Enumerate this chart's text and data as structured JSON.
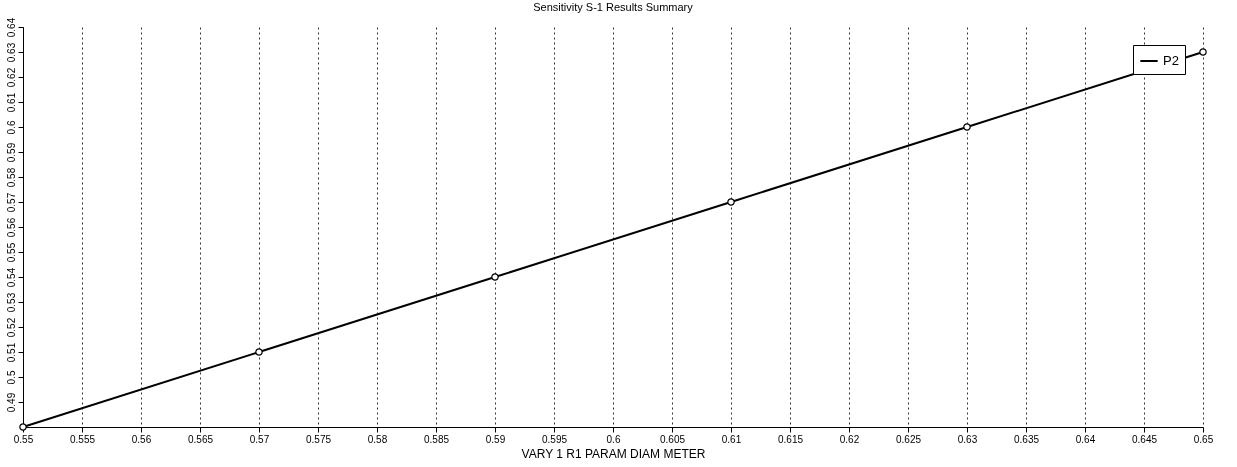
{
  "chart_data": {
    "type": "line",
    "title": "Sensitivity S-1 Results Summary",
    "xlabel": "VARY 1 R1 PARAM DIAM  METER",
    "x": [
      0.55,
      0.57,
      0.59,
      0.61,
      0.63,
      0.65
    ],
    "series": [
      {
        "name": "P2",
        "color": "#000000",
        "values": [
          0.48,
          0.51,
          0.54,
          0.57,
          0.6,
          0.63
        ]
      }
    ],
    "xlim": [
      0.55,
      0.65
    ],
    "xticks": [
      0.55,
      0.555,
      0.56,
      0.565,
      0.57,
      0.575,
      0.58,
      0.585,
      0.59,
      0.595,
      0.6,
      0.605,
      0.61,
      0.615,
      0.62,
      0.625,
      0.63,
      0.635,
      0.64,
      0.645,
      0.65
    ],
    "ylim": [
      0.48,
      0.64
    ],
    "yticks": [
      0.49,
      0.5,
      0.51,
      0.52,
      0.53,
      0.54,
      0.55,
      0.56,
      0.57,
      0.58,
      0.59,
      0.6,
      0.61,
      0.62,
      0.63,
      0.64
    ],
    "grid": "x",
    "legend": "top right",
    "marker": "circle",
    "line_style": "solid"
  }
}
